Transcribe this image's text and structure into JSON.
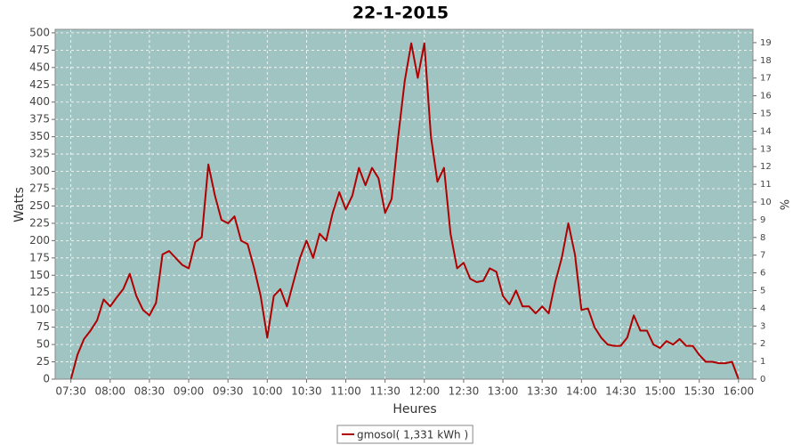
{
  "chart_data": {
    "type": "line",
    "title": "22-1-2015",
    "xlabel": "Heures",
    "ylabel": "Watts",
    "y2label": "%",
    "x": [
      "07:30",
      "07:35",
      "07:40",
      "07:45",
      "07:50",
      "07:55",
      "08:00",
      "08:05",
      "08:10",
      "08:15",
      "08:20",
      "08:25",
      "08:30",
      "08:35",
      "08:40",
      "08:45",
      "08:50",
      "08:55",
      "09:00",
      "09:05",
      "09:10",
      "09:15",
      "09:20",
      "09:25",
      "09:30",
      "09:35",
      "09:40",
      "09:45",
      "09:50",
      "09:55",
      "10:00",
      "10:05",
      "10:10",
      "10:15",
      "10:20",
      "10:25",
      "10:30",
      "10:35",
      "10:40",
      "10:45",
      "10:50",
      "10:55",
      "11:00",
      "11:05",
      "11:10",
      "11:15",
      "11:20",
      "11:25",
      "11:30",
      "11:35",
      "11:40",
      "11:45",
      "11:50",
      "11:55",
      "12:00",
      "12:05",
      "12:10",
      "12:15",
      "12:20",
      "12:25",
      "12:30",
      "12:35",
      "12:40",
      "12:45",
      "12:50",
      "12:55",
      "13:00",
      "13:05",
      "13:10",
      "13:15",
      "13:20",
      "13:25",
      "13:30",
      "13:35",
      "13:40",
      "13:45",
      "13:50",
      "13:55",
      "14:00",
      "14:05",
      "14:10",
      "14:15",
      "14:20",
      "14:25",
      "14:30",
      "14:35",
      "14:40",
      "14:45",
      "14:50",
      "14:55",
      "15:00",
      "15:05",
      "15:10",
      "15:15",
      "15:20",
      "15:25",
      "15:30",
      "15:35",
      "15:40",
      "15:45",
      "15:50",
      "15:55",
      "16:00"
    ],
    "series": [
      {
        "name": "gmosol( 1,331 kWh )",
        "color": "#b00000",
        "values": [
          0,
          35,
          58,
          70,
          85,
          115,
          105,
          118,
          130,
          152,
          120,
          100,
          92,
          110,
          180,
          185,
          175,
          165,
          160,
          198,
          205,
          310,
          265,
          230,
          225,
          235,
          200,
          195,
          160,
          120,
          60,
          120,
          130,
          105,
          140,
          175,
          200,
          175,
          210,
          200,
          240,
          270,
          245,
          265,
          305,
          280,
          305,
          290,
          240,
          260,
          350,
          430,
          485,
          435,
          485,
          350,
          285,
          305,
          210,
          160,
          168,
          145,
          140,
          142,
          160,
          155,
          120,
          108,
          128,
          105,
          105,
          95,
          105,
          95,
          140,
          175,
          225,
          180,
          100,
          102,
          75,
          60,
          50,
          48,
          48,
          60,
          92,
          70,
          70,
          50,
          45,
          55,
          50,
          58,
          48,
          48,
          35,
          25,
          25,
          23,
          23,
          25,
          0
        ]
      }
    ],
    "xlim": [
      "07:18",
      "16:11"
    ],
    "xticks": [
      "07:30",
      "08:00",
      "08:30",
      "09:00",
      "09:30",
      "10:00",
      "10:30",
      "11:00",
      "11:30",
      "12:00",
      "12:30",
      "13:00",
      "13:30",
      "14:00",
      "14:30",
      "15:00",
      "15:30",
      "16:00"
    ],
    "ylim": [
      0,
      505
    ],
    "yticks": [
      0,
      25,
      50,
      75,
      100,
      125,
      150,
      175,
      200,
      225,
      250,
      275,
      300,
      325,
      350,
      375,
      400,
      425,
      450,
      475,
      500
    ],
    "y2lim": [
      0,
      19.75
    ],
    "y2ticks": [
      0,
      1,
      2,
      3,
      4,
      5,
      6,
      7,
      8,
      9,
      10,
      11,
      12,
      13,
      14,
      15,
      16,
      17,
      18,
      19
    ],
    "grid": true,
    "legend": "bottom",
    "background": "#a0c4c2"
  }
}
